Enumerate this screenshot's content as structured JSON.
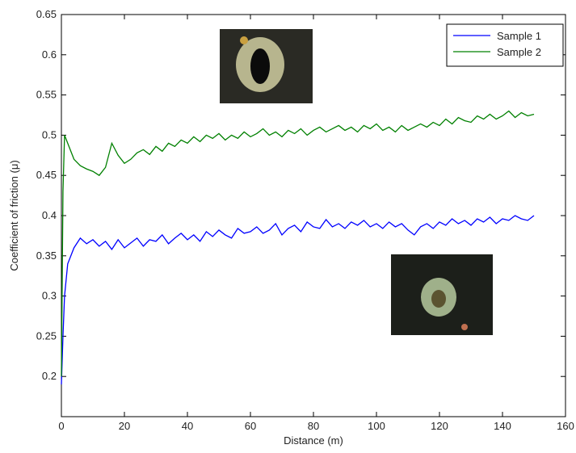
{
  "chart_data": {
    "type": "line",
    "xlabel": "Distance (m)",
    "ylabel": "Coefficient of friction (μ)",
    "x": [
      0,
      0.5,
      1,
      2,
      4,
      6,
      8,
      10,
      12,
      14,
      16,
      18,
      20,
      22,
      24,
      26,
      28,
      30,
      32,
      34,
      36,
      38,
      40,
      42,
      44,
      46,
      48,
      50,
      52,
      54,
      56,
      58,
      60,
      62,
      64,
      66,
      68,
      70,
      72,
      74,
      76,
      78,
      80,
      82,
      84,
      86,
      88,
      90,
      92,
      94,
      96,
      98,
      100,
      102,
      104,
      106,
      108,
      110,
      112,
      114,
      116,
      118,
      120,
      122,
      124,
      126,
      128,
      130,
      132,
      134,
      136,
      138,
      140,
      142,
      144,
      146,
      148,
      150
    ],
    "series": [
      {
        "name": "Sample 1",
        "color": "#0000ff",
        "values": [
          0.19,
          0.25,
          0.3,
          0.34,
          0.36,
          0.372,
          0.365,
          0.37,
          0.362,
          0.368,
          0.358,
          0.37,
          0.36,
          0.366,
          0.372,
          0.362,
          0.37,
          0.368,
          0.376,
          0.365,
          0.372,
          0.378,
          0.37,
          0.376,
          0.368,
          0.38,
          0.374,
          0.382,
          0.376,
          0.372,
          0.384,
          0.378,
          0.38,
          0.386,
          0.378,
          0.382,
          0.39,
          0.376,
          0.384,
          0.388,
          0.38,
          0.392,
          0.386,
          0.384,
          0.395,
          0.386,
          0.39,
          0.384,
          0.392,
          0.388,
          0.394,
          0.386,
          0.39,
          0.384,
          0.392,
          0.386,
          0.39,
          0.382,
          0.376,
          0.386,
          0.39,
          0.384,
          0.392,
          0.388,
          0.396,
          0.39,
          0.394,
          0.388,
          0.396,
          0.392,
          0.398,
          0.39,
          0.396,
          0.394,
          0.4,
          0.396,
          0.394,
          0.4
        ]
      },
      {
        "name": "Sample 2",
        "color": "#008000",
        "values": [
          0.2,
          0.43,
          0.5,
          0.49,
          0.47,
          0.462,
          0.458,
          0.455,
          0.45,
          0.46,
          0.49,
          0.475,
          0.465,
          0.47,
          0.478,
          0.482,
          0.476,
          0.486,
          0.48,
          0.49,
          0.486,
          0.494,
          0.49,
          0.498,
          0.492,
          0.5,
          0.496,
          0.502,
          0.494,
          0.5,
          0.496,
          0.504,
          0.498,
          0.502,
          0.508,
          0.5,
          0.504,
          0.498,
          0.506,
          0.502,
          0.508,
          0.5,
          0.506,
          0.51,
          0.504,
          0.508,
          0.512,
          0.506,
          0.51,
          0.504,
          0.512,
          0.508,
          0.514,
          0.506,
          0.51,
          0.504,
          0.512,
          0.506,
          0.51,
          0.514,
          0.51,
          0.516,
          0.512,
          0.52,
          0.514,
          0.522,
          0.518,
          0.516,
          0.524,
          0.52,
          0.526,
          0.52,
          0.524,
          0.53,
          0.522,
          0.528,
          0.524,
          0.526
        ]
      }
    ],
    "xlim": [
      0,
      160
    ],
    "xticks": [
      0,
      20,
      40,
      60,
      80,
      100,
      120,
      140,
      160
    ],
    "ylim": [
      0.15,
      0.65
    ],
    "yticks": [
      0.2,
      0.25,
      0.3,
      0.35,
      0.4,
      0.45,
      0.5,
      0.55,
      0.6,
      0.65
    ],
    "legend": "upper right"
  }
}
